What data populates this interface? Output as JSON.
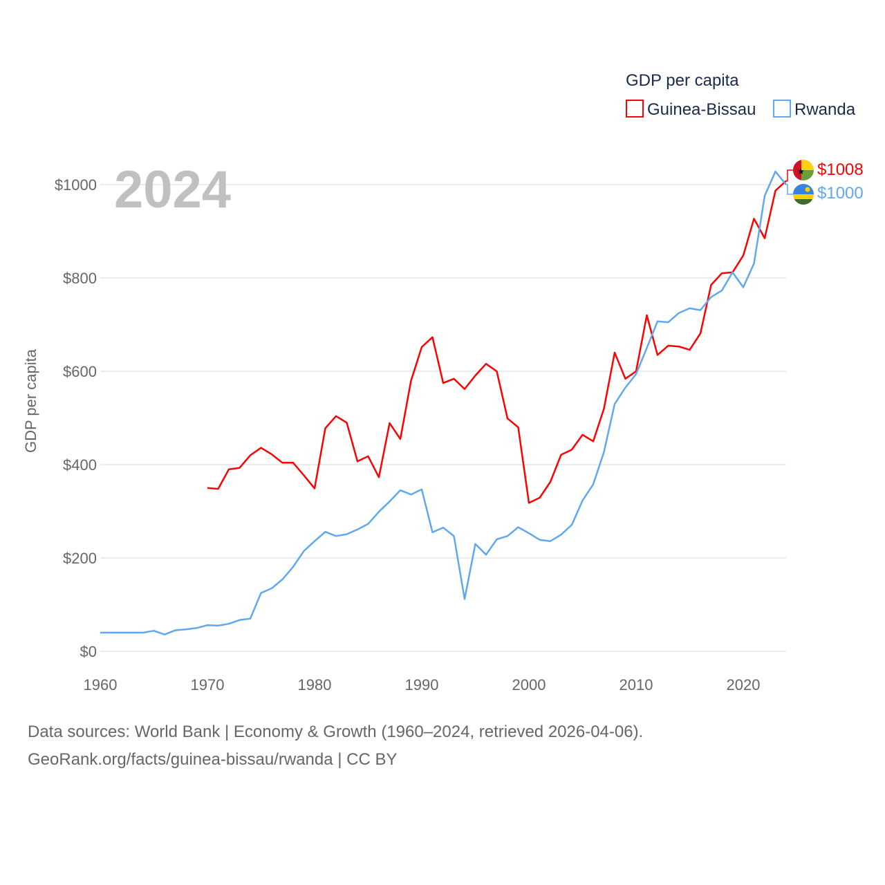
{
  "chart_data": {
    "type": "line",
    "title": "GDP per capita",
    "year_label": "2024",
    "ylabel": "GDP per capita",
    "xlabel": "",
    "xlim": [
      1960,
      2024
    ],
    "ylim": [
      0,
      1000
    ],
    "x_ticks": [
      "1960",
      "1970",
      "1980",
      "1990",
      "2000",
      "2010",
      "2020"
    ],
    "y_ticks": [
      "$0",
      "$200",
      "$400",
      "$600",
      "$800",
      "$1000"
    ],
    "grid": true,
    "legend_position": "top-right",
    "series": [
      {
        "name": "Guinea-Bissau",
        "color": "#ff0000",
        "end_label": "$1008",
        "start_year": 1970,
        "values": [
          350,
          348,
          390,
          393,
          420,
          436,
          422,
          404,
          404,
          377,
          349,
          478,
          504,
          490,
          407,
          418,
          373,
          489,
          455,
          580,
          652,
          673,
          575,
          584,
          562,
          591,
          616,
          600,
          499,
          480,
          318,
          329,
          363,
          421,
          432,
          464,
          450,
          520,
          640,
          584,
          600,
          720,
          635,
          655,
          653,
          646,
          681,
          785,
          810,
          812,
          848,
          927,
          885,
          987,
          1008
        ]
      },
      {
        "name": "Rwanda",
        "color": "#5fa8f0",
        "end_label": "$1000",
        "start_year": 1960,
        "values": [
          40,
          40,
          40,
          40,
          40,
          44,
          36,
          45,
          47,
          50,
          56,
          55,
          59,
          67,
          70,
          125,
          135,
          154,
          181,
          215,
          236,
          256,
          247,
          251,
          261,
          273,
          299,
          321,
          345,
          336,
          347,
          255,
          265,
          247,
          112,
          230,
          207,
          240,
          247,
          266,
          253,
          239,
          236,
          250,
          271,
          323,
          358,
          427,
          530,
          565,
          594,
          650,
          707,
          705,
          725,
          735,
          731,
          759,
          773,
          812,
          780,
          831,
          976,
          1028,
          1000
        ]
      }
    ]
  },
  "footer": {
    "line1": "Data sources: World Bank | Economy & Growth (1960–2024, retrieved 2026-04-06).",
    "line2": "GeoRank.org/facts/guinea-bissau/rwanda | CC BY"
  }
}
